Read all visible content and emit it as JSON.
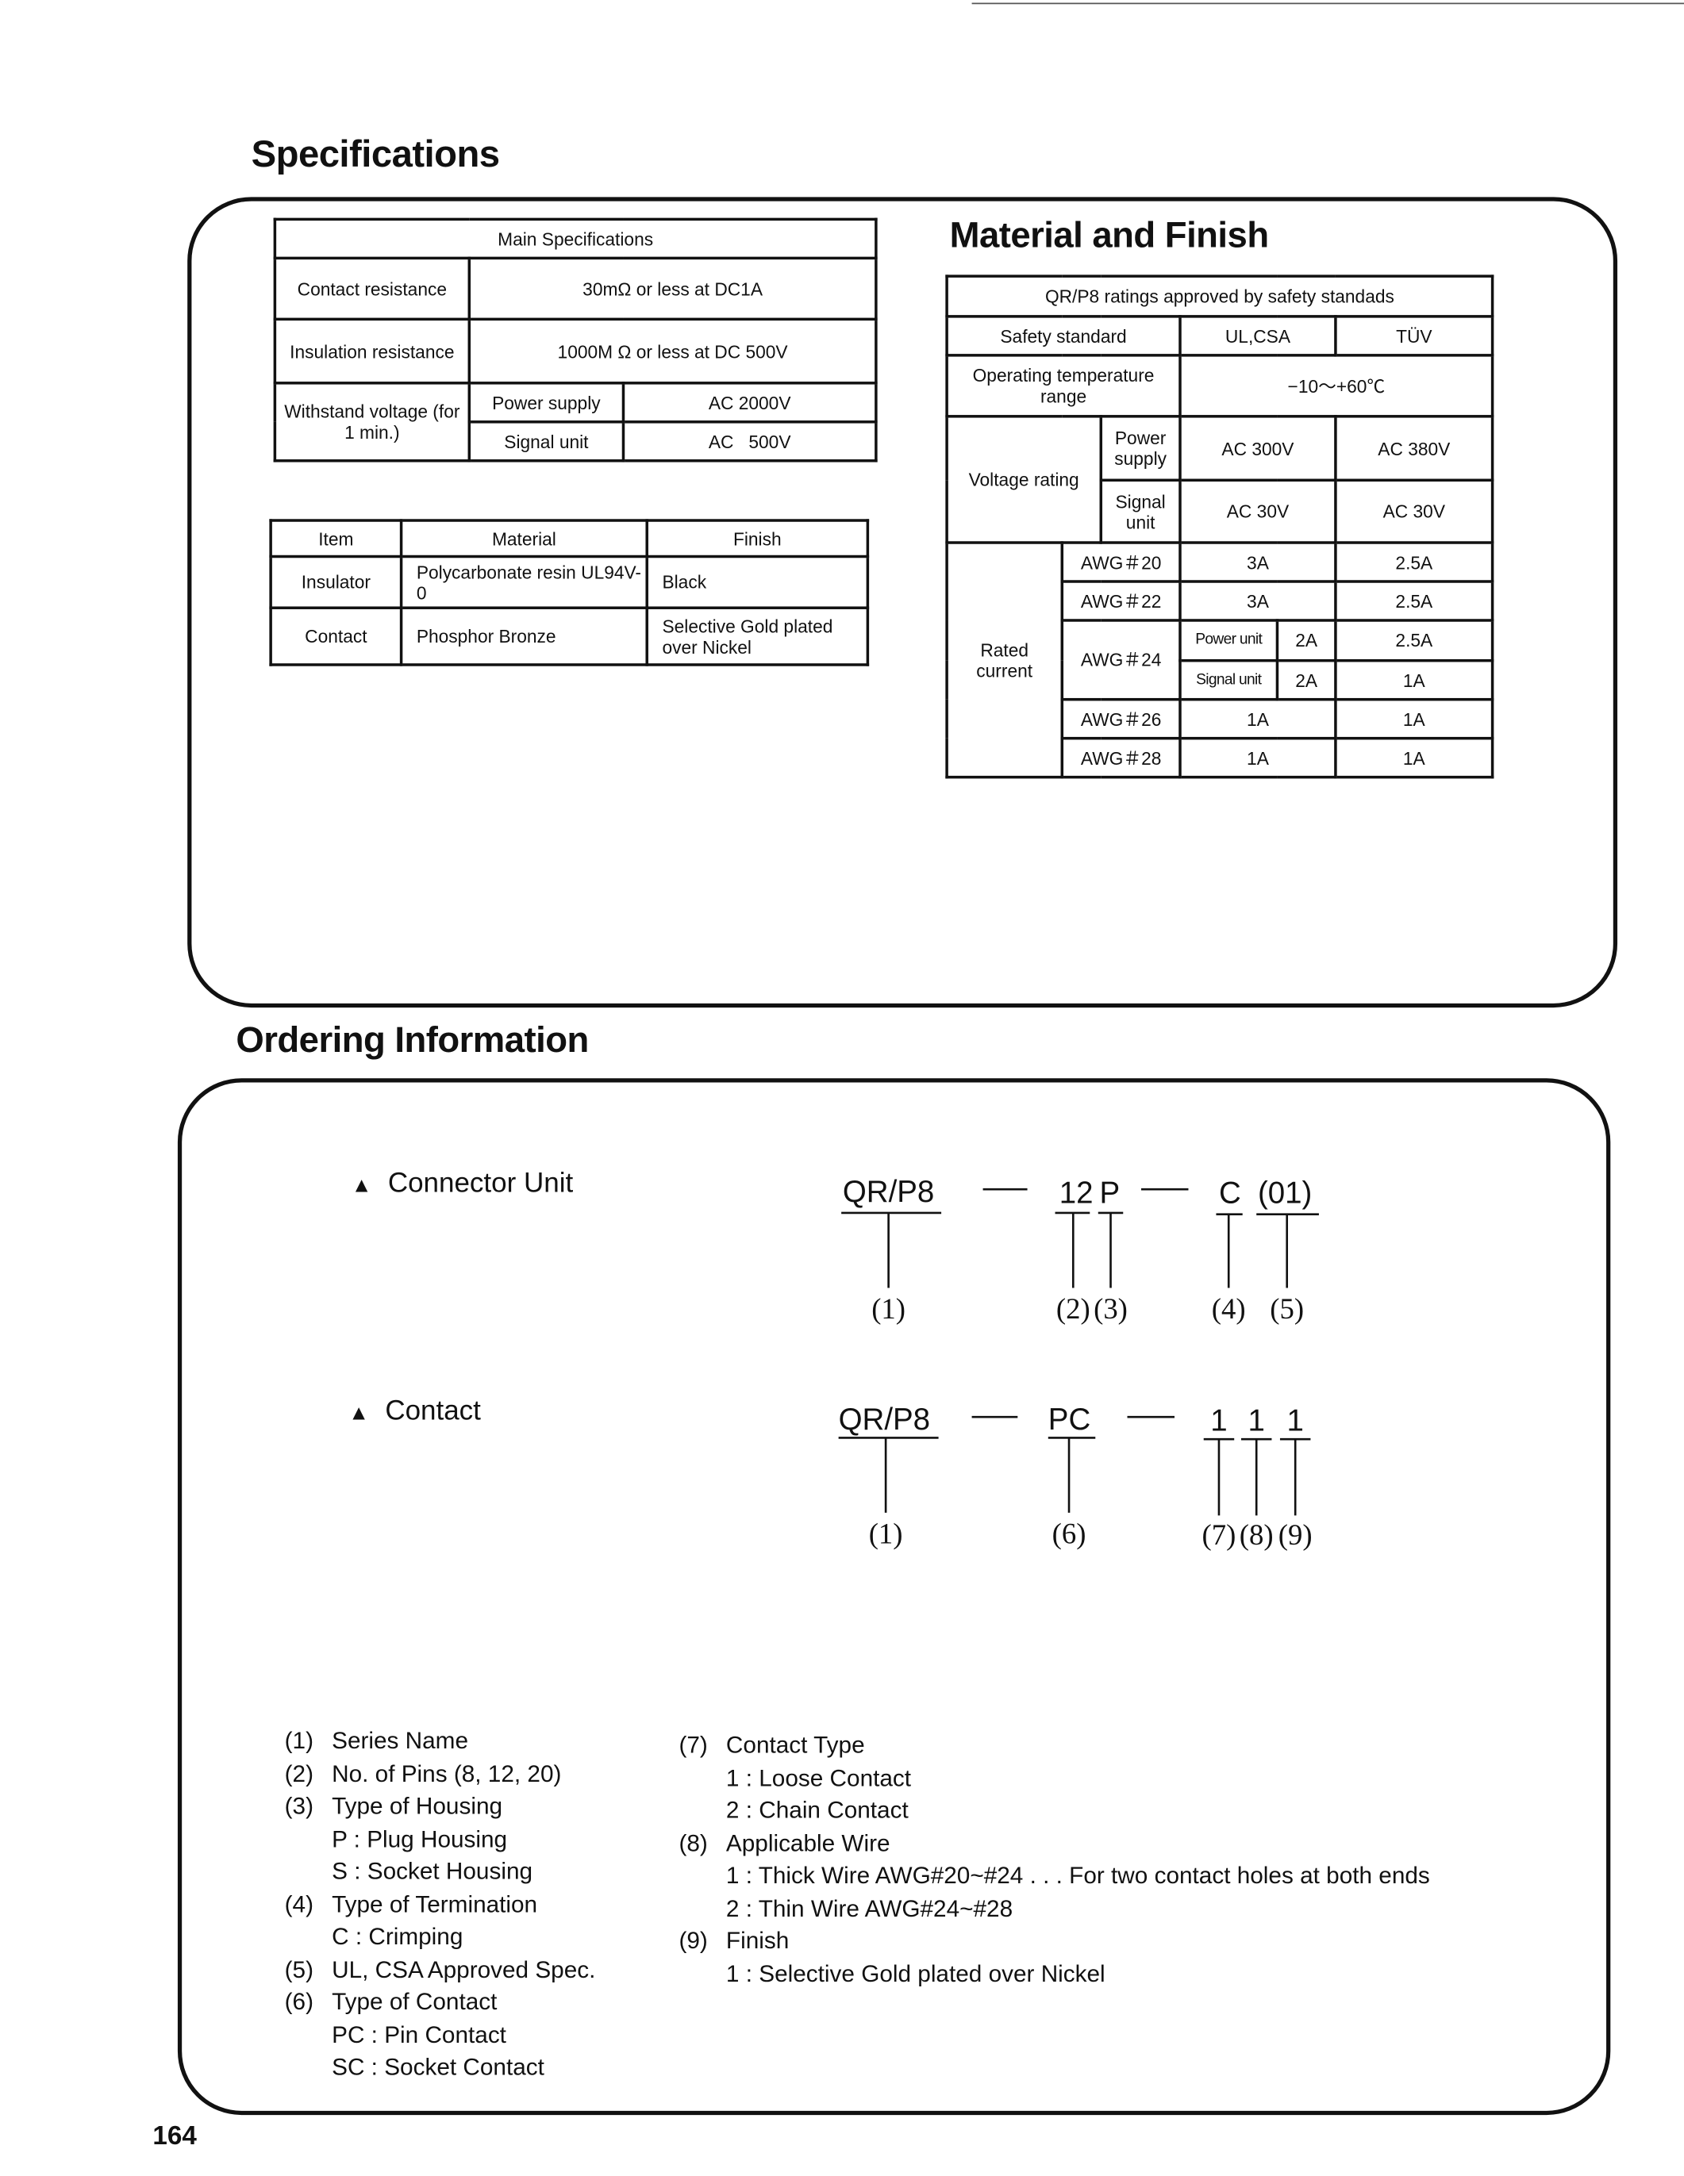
{
  "specifications": {
    "title": "Specifications",
    "main_table": {
      "header": "Main Specifications",
      "contact_resistance_label": "Contact resistance",
      "contact_resistance_value": "30mΩ  or less at DC1A",
      "insulation_resistance_label": "Insulation resistance",
      "insulation_resistance_value": "1000M  Ω  or less at DC 500V",
      "withstand_label": "Withstand voltage (for 1 min.)",
      "power_supply_label": "Power supply",
      "power_supply_value": "AC 2000V",
      "signal_unit_label": "Signal unit",
      "signal_unit_value": "AC   500V"
    },
    "material_table": {
      "headers": [
        "Item",
        "Material",
        "Finish"
      ],
      "rows": [
        {
          "item": "Insulator",
          "material": "Polycarbonate resin UL94V-0",
          "finish": "Black"
        },
        {
          "item": "Contact",
          "material": "Phosphor Bronze",
          "finish": "Selective Gold plated over Nickel"
        }
      ]
    }
  },
  "material_finish": {
    "title": "Material and Finish",
    "table": {
      "header": "QR/P8 ratings approved by safety standads",
      "safety_standard": "Safety standard",
      "ul_csa": "UL,CSA",
      "tuv": "TÜV",
      "op_temp_label": "Operating temperature range",
      "op_temp_value": "−10～+60℃",
      "voltage_rating": "Voltage rating",
      "power_supply": "Power supply",
      "signal_unit": "Signal unit",
      "v_power_ul": "AC 300V",
      "v_power_tuv": "AC 380V",
      "v_signal_ul": "AC 30V",
      "v_signal_tuv": "AC 30V",
      "rated_current": "Rated current",
      "awg20": "AWG＃20",
      "awg20_ul": "3A",
      "awg20_tuv": "2.5A",
      "awg22": "AWG＃22",
      "awg22_ul": "3A",
      "awg22_tuv": "2.5A",
      "awg24": "AWG＃24",
      "awg24_power_label": "Power unit",
      "awg24_power_ul": "2A",
      "awg24_power_tuv": "2.5A",
      "awg24_signal_label": "Signal unit",
      "awg24_signal_ul": "2A",
      "awg24_signal_tuv": "1A",
      "awg26": "AWG＃26",
      "awg26_ul": "1A",
      "awg26_tuv": "1A",
      "awg28": "AWG＃28",
      "awg28_ul": "1A",
      "awg28_tuv": "1A"
    }
  },
  "ordering": {
    "title": "Ordering Information",
    "connector_unit_label": "Connector Unit",
    "contact_label": "Contact",
    "triangle": "▲",
    "connector_code": {
      "series": "QR/P8",
      "pins": "12",
      "housing": "P",
      "termination": "C",
      "spec": "(01)",
      "labels": [
        "(1)",
        "(2)",
        "(3)",
        "(4)",
        "(5)"
      ]
    },
    "contact_code": {
      "series": "QR/P8",
      "type": "PC",
      "d1": "1",
      "d2": "1",
      "d3": "1",
      "labels": [
        "(1)",
        "(6)",
        "(7)",
        "(8)",
        "(9)"
      ]
    },
    "legend_left": [
      {
        "num": "(1)",
        "text": "Series Name"
      },
      {
        "num": "(2)",
        "text": "No. of Pins (8, 12, 20)"
      },
      {
        "num": "(3)",
        "text": "Type of Housing"
      },
      {
        "num": "",
        "text": "P :  Plug Housing"
      },
      {
        "num": "",
        "text": "S :  Socket Housing"
      },
      {
        "num": "(4)",
        "text": "Type of Termination"
      },
      {
        "num": "",
        "text": "C :  Crimping"
      },
      {
        "num": "(5)",
        "text": "UL, CSA Approved Spec."
      },
      {
        "num": "(6)",
        "text": "Type of Contact"
      },
      {
        "num": "",
        "text": "PC :  Pin Contact"
      },
      {
        "num": "",
        "text": "SC :  Socket Contact"
      }
    ],
    "legend_right": [
      {
        "num": "(7)",
        "text": "Contact Type"
      },
      {
        "num": "",
        "text": "1 :  Loose Contact"
      },
      {
        "num": "",
        "text": "2 :  Chain Contact"
      },
      {
        "num": "(8)",
        "text": "Applicable Wire"
      },
      {
        "num": "",
        "text": "1 :  Thick Wire AWG#20~#24 . . . For two contact holes at both ends"
      },
      {
        "num": "",
        "text": "2 :  Thin Wire   AWG#24~#28"
      },
      {
        "num": "(9)",
        "text": "Finish"
      },
      {
        "num": "",
        "text": "1 :  Selective Gold plated over Nickel"
      }
    ]
  },
  "page_number": "164"
}
